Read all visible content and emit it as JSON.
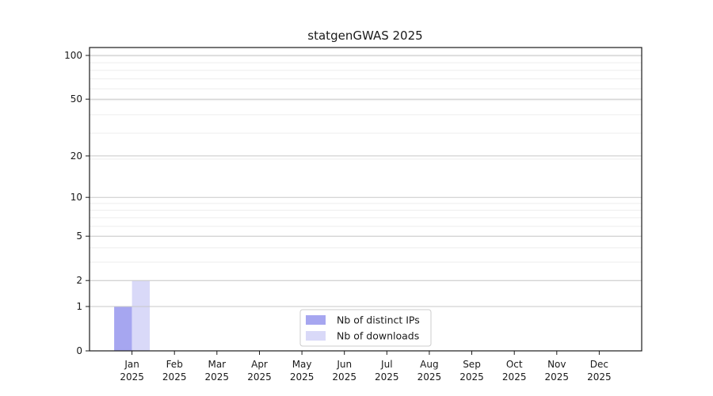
{
  "chart_data": {
    "type": "bar",
    "title": "statgenGWAS 2025",
    "categories": [
      "Jan",
      "Feb",
      "Mar",
      "Apr",
      "May",
      "Jun",
      "Jul",
      "Aug",
      "Sep",
      "Oct",
      "Nov",
      "Dec"
    ],
    "category_sublabel": "2025",
    "series": [
      {
        "name": "Nb of distinct IPs",
        "color": "#a6a6f0",
        "values": [
          1,
          0,
          0,
          0,
          0,
          0,
          0,
          0,
          0,
          0,
          0,
          0
        ]
      },
      {
        "name": "Nb of downloads",
        "color": "#d9d9f8",
        "values": [
          2,
          0,
          0,
          0,
          0,
          0,
          0,
          0,
          0,
          0,
          0,
          0
        ]
      }
    ],
    "yscale": "log1p",
    "yticks": [
      0,
      1,
      2,
      5,
      10,
      20,
      50,
      100
    ],
    "ylim": [
      0,
      113
    ],
    "xlabel": "",
    "ylabel": "",
    "grid": true,
    "legend": {
      "position": "bottom-center",
      "entries": [
        "Nb of distinct IPs",
        "Nb of downloads"
      ]
    }
  },
  "colors": {
    "background": "#ffffff",
    "axis": "#1a1a1a",
    "major_grid": "#c8c8c8",
    "minor_grid": "#ededed",
    "legend_border": "#cccccc",
    "legend_background": "#ffffff"
  }
}
